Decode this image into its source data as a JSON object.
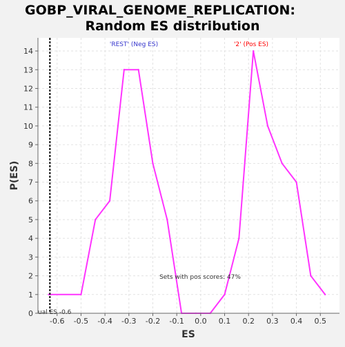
{
  "chart_data": {
    "type": "line",
    "title": "GOBP_VIRAL_GENOME_REPLICATION:",
    "subtitle": "Random ES distribution",
    "xlabel": "ES",
    "ylabel": "P(ES)",
    "xlim": [
      -0.68,
      0.58
    ],
    "ylim": [
      0,
      14.7
    ],
    "x_ticks": [
      -0.6,
      -0.5,
      -0.4,
      -0.3,
      -0.2,
      -0.1,
      0.0,
      0.1,
      0.2,
      0.3,
      0.4,
      0.5
    ],
    "x_tick_labels": [
      "-0.6",
      "-0.5",
      "-0.4",
      "-0.3",
      "-0.2",
      "-0.1",
      "0.0",
      "0.1",
      "0.2",
      "0.3",
      "0.4",
      "0.5"
    ],
    "y_ticks": [
      0,
      1,
      2,
      3,
      4,
      5,
      6,
      7,
      8,
      9,
      10,
      11,
      12,
      13,
      14
    ],
    "y_tick_labels": [
      "0",
      "1",
      "2",
      "3",
      "4",
      "5",
      "6",
      "7",
      "8",
      "9",
      "10",
      "11",
      "12",
      "13",
      "14"
    ],
    "grid": true,
    "series": [
      {
        "color": "#ff33ff",
        "x": [
          -0.635,
          -0.5,
          -0.44,
          -0.38,
          -0.32,
          -0.26,
          -0.2,
          -0.14,
          -0.08,
          -0.02,
          0.04,
          0.1,
          0.16,
          0.22,
          0.28,
          0.34,
          0.4,
          0.46,
          0.52
        ],
        "y": [
          1,
          1,
          5,
          6,
          13,
          13,
          8,
          5,
          0,
          0,
          0,
          1,
          4,
          14,
          10,
          8,
          7,
          2,
          1
        ]
      }
    ],
    "actual_es": {
      "x": -0.63,
      "label": "ual ES -0.6",
      "color": "#000000"
    },
    "annotations": {
      "neg_label": "'REST' (Neg ES)",
      "neg_color": "#3333cc",
      "pos_label": "'2' (Pos ES)",
      "pos_color": "#ff0000",
      "pos_scores": "Sets with pos scores: 47%"
    }
  }
}
